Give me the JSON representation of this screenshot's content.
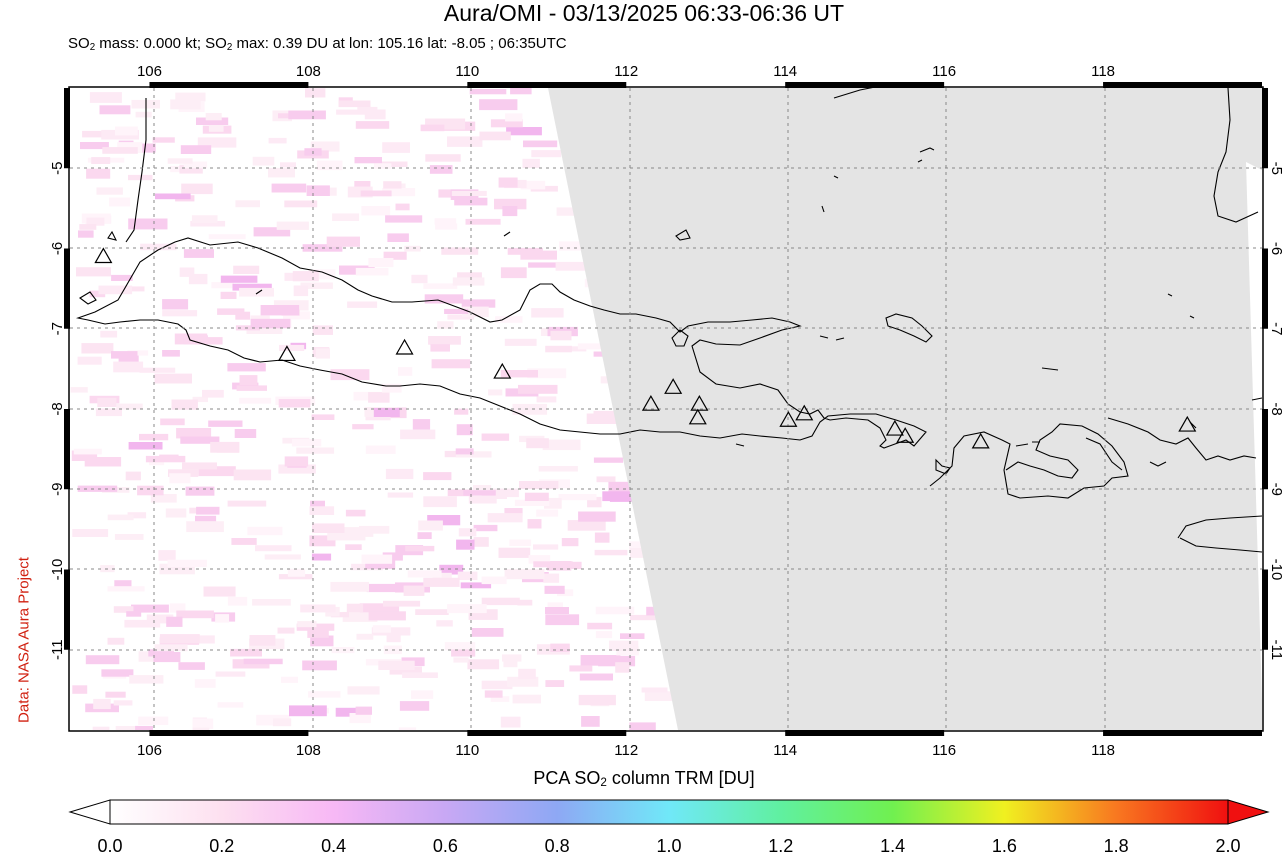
{
  "title": "Aura/OMI - 03/13/2025 06:33-06:36 UT",
  "subtitle": {
    "prefix": "SO",
    "sub1": "2",
    "mid": " mass: 0.000 kt; SO",
    "sub2": "2",
    "suffix": " max: 0.39 DU at lon: 105.16 lat: -8.05 ; 06:35UTC"
  },
  "credit": "Data: NASA Aura Project",
  "map": {
    "lon_range": [
      105,
      120
    ],
    "lat_range": [
      -12,
      -4
    ],
    "lon_ticks": [
      "106",
      "108",
      "110",
      "112",
      "114",
      "116",
      "118"
    ],
    "lat_ticks": [
      "-5",
      "-6",
      "-7",
      "-8",
      "-9",
      "-10",
      "-11"
    ],
    "no_data_color": "#e4e4e4",
    "grid": "dotted",
    "volcanoes": [
      {
        "lon": 105.42,
        "lat": -6.1
      },
      {
        "lon": 107.73,
        "lat": -7.32
      },
      {
        "lon": 109.21,
        "lat": -7.24
      },
      {
        "lon": 110.44,
        "lat": -7.54
      },
      {
        "lon": 112.31,
        "lat": -7.94
      },
      {
        "lon": 112.59,
        "lat": -7.73
      },
      {
        "lon": 112.92,
        "lat": -7.94
      },
      {
        "lon": 112.9,
        "lat": -8.11
      },
      {
        "lon": 114.04,
        "lat": -8.14
      },
      {
        "lon": 114.24,
        "lat": -8.06
      },
      {
        "lon": 115.38,
        "lat": -8.25
      },
      {
        "lon": 115.51,
        "lat": -8.34
      },
      {
        "lon": 116.46,
        "lat": -8.41
      },
      {
        "lon": 119.06,
        "lat": -8.2
      }
    ]
  },
  "colorbar": {
    "title_prefix": "PCA SO",
    "title_sub": "2",
    "title_suffix": " column TRM [DU]",
    "min": 0.0,
    "max": 2.0,
    "labels": [
      "0.0",
      "0.2",
      "0.4",
      "0.6",
      "0.8",
      "1.0",
      "1.2",
      "1.4",
      "1.6",
      "1.8",
      "2.0"
    ],
    "colors": [
      "#ffffff",
      "#fde0f0",
      "#f7b8f5",
      "#c8a8f4",
      "#8ea8f4",
      "#70e8f8",
      "#60f0a0",
      "#70f050",
      "#f0f020",
      "#f87820",
      "#f01010"
    ]
  }
}
